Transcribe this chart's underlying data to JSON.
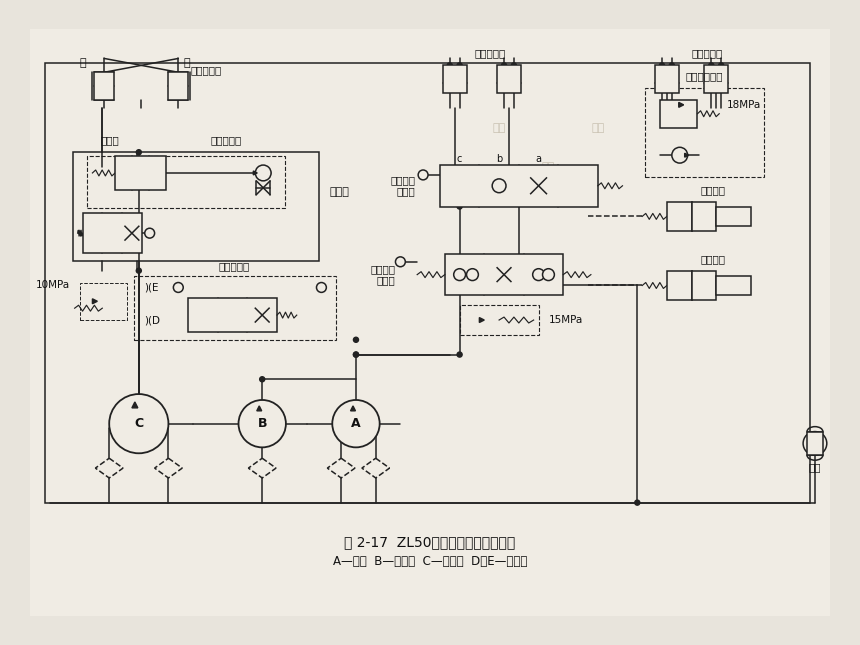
{
  "title": "图 2-17  ZL50装载机液压系统原理图",
  "subtitle": "A—主泵  B—辅助泵  C—转向泵  D、E—节流口",
  "bg_color": "#e8e4dc",
  "paper_color": "#f0ece4",
  "line_color": "#222222",
  "label_color": "#111111",
  "labels": {
    "left": "左",
    "right": "右",
    "steering_cyl": "转向液压缸",
    "boom_cyl": "动臂液压缸",
    "bucket_cyl": "铲斗液压缸",
    "lock_valve": "锁紧阀",
    "check_throttle": "单向节流阀",
    "steering_valve": "转向阀",
    "flow_control": "流量控制阀",
    "pressure_10": "10MPa",
    "four_pos_six_1": "四位六通",
    "four_pos_six_2": "换向阀",
    "three_pos_six_1": "三位六通",
    "three_pos_six_2": "换向阀",
    "dual_safety": "双作用安全阀",
    "pressure_18": "18MPa",
    "pressure_15": "15MPa",
    "solenoid_1": "电磁气阀",
    "solenoid_2": "电磁气阀",
    "air_tank": "气罐",
    "pump_A": "A",
    "pump_B": "B",
    "pump_C": "C",
    "throttle_D": "D",
    "throttle_E": "E",
    "pos_a": "a",
    "pos_b": "b",
    "pos_c": "c"
  },
  "figsize": [
    8.6,
    6.45
  ],
  "dpi": 100
}
